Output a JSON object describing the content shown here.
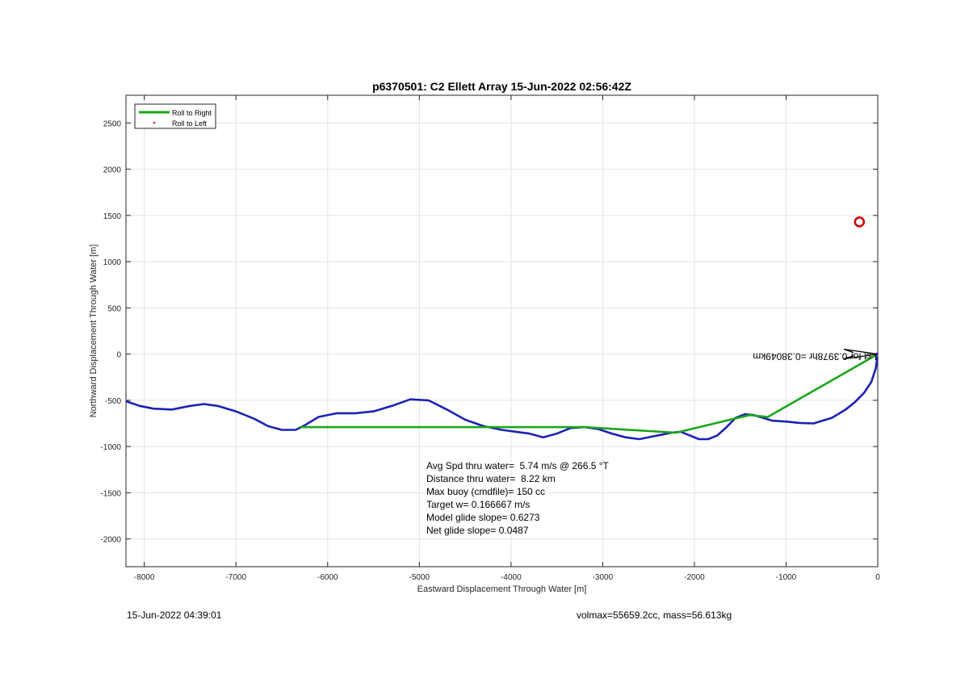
{
  "chart_data": {
    "type": "line",
    "title": "p6370501: C2 Ellett Array 15-Jun-2022 02:56:42Z",
    "xlabel": "Eastward Displacement Through Water [m]",
    "ylabel": "Northward Displacement Through Water [m]",
    "xlim": [
      -8200,
      0
    ],
    "ylim": [
      -2300,
      2800
    ],
    "xticks": [
      -8000,
      -7000,
      -6000,
      -5000,
      -4000,
      -3000,
      -2000,
      -1000,
      0
    ],
    "yticks": [
      -2000,
      -1500,
      -1000,
      -500,
      0,
      500,
      1000,
      1500,
      2000,
      2500
    ],
    "grid": true,
    "legend": {
      "position": "top-left",
      "entries": [
        "Roll to Right",
        "Roll to Left"
      ]
    },
    "series": [
      {
        "name": "Roll to Right",
        "color": "#1aa51a",
        "x": [
          0,
          -1200,
          -1400,
          -2200,
          -3200,
          -4400,
          -6300
        ],
        "y": [
          0,
          -680,
          -660,
          -850,
          -790,
          -790,
          -790
        ]
      },
      {
        "name": "Roll to Left",
        "color": "#cc0000",
        "x": [
          0
        ],
        "y": [
          0
        ]
      },
      {
        "name": "",
        "color": "#1c21b8",
        "x": [
          0,
          -20,
          -70,
          -150,
          -250,
          -350,
          -500,
          -700,
          -850,
          -1000,
          -1150,
          -1250,
          -1350,
          -1450,
          -1550,
          -1650,
          -1750,
          -1850,
          -1950,
          -2050,
          -2150,
          -2250,
          -2350,
          -2450,
          -2600,
          -2750,
          -2900,
          -3050,
          -3200,
          -3350,
          -3500,
          -3650,
          -3800,
          -3950,
          -4100,
          -4300,
          -4500,
          -4700,
          -4900,
          -5100,
          -5300,
          -5500,
          -5700,
          -5900,
          -6100,
          -6250,
          -6350,
          -6500,
          -6650,
          -6800,
          -7000,
          -7200,
          -7350,
          -7500,
          -7700,
          -7900,
          -8050,
          -8200
        ],
        "y": [
          0,
          -150,
          -300,
          -420,
          -520,
          -600,
          -690,
          -750,
          -745,
          -730,
          -720,
          -690,
          -660,
          -650,
          -690,
          -790,
          -880,
          -920,
          -920,
          -880,
          -840,
          -850,
          -870,
          -890,
          -920,
          -900,
          -860,
          -810,
          -790,
          -800,
          -860,
          -900,
          -860,
          -840,
          -820,
          -780,
          -710,
          -600,
          -500,
          -490,
          -560,
          -620,
          -640,
          -640,
          -680,
          -770,
          -820,
          -820,
          -780,
          -700,
          -620,
          -560,
          -540,
          -560,
          -600,
          -590,
          -560,
          -510
        ]
      }
    ],
    "annotations": {
      "text_lines": [
        "Avg Spd thru water=  5.74 m/s @ 266.5 °T",
        "Distance thru water=  8.22 km",
        "Max buoy (cmdfile)= 150 cc",
        "Target w= 0.166667 m/s",
        "Model glide slope= 0.6273",
        "Net glide slope= 0.0487"
      ],
      "mirrored_label": "Lst for 0.3978hr =0.38049km",
      "circle_marker": {
        "x": -200,
        "y": 1430,
        "color": "#cc0000"
      }
    }
  },
  "footer": {
    "left": "15-Jun-2022 04:39:01",
    "right": "volmax=55659.2cc, mass=56.613kg"
  }
}
